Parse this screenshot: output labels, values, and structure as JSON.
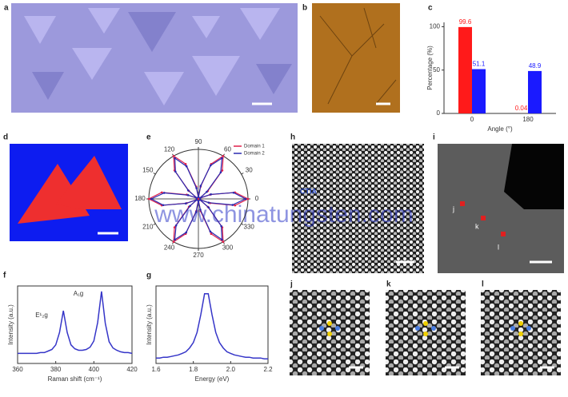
{
  "panel_labels": [
    "a",
    "b",
    "c",
    "d",
    "e",
    "h",
    "i",
    "f",
    "g",
    "j",
    "k",
    "l"
  ],
  "panel_i_markers": [
    "j",
    "k",
    "l"
  ],
  "watermark": "www.chinatungsten.com",
  "logo_text": "CTIA",
  "chart_data": [
    {
      "type": "bar",
      "ylabel": "Percentage (%)",
      "xlabel": "Angle (°)",
      "categories": [
        "0",
        "180"
      ],
      "series": [
        {
          "color": "#ff1a1a",
          "values": [
            99.6,
            0.04
          ]
        },
        {
          "color": "#1a1aff",
          "values": [
            51.1,
            48.9
          ]
        }
      ],
      "ylim": [
        0,
        105
      ],
      "yticks": [
        0,
        50,
        100
      ]
    },
    {
      "type": "polar",
      "x": [
        0,
        10,
        20,
        30,
        40,
        50,
        60,
        70,
        80,
        90,
        100,
        110,
        120,
        130,
        140,
        150,
        160,
        170,
        180,
        190,
        200,
        210,
        220,
        230,
        240,
        250,
        260,
        270,
        280,
        290,
        300,
        310,
        320,
        330,
        340,
        350
      ],
      "xticks": [
        0,
        30,
        60,
        90,
        120,
        150,
        180,
        210,
        240,
        270,
        300,
        330
      ],
      "rlim": [
        0,
        1
      ],
      "series": [
        {
          "name": "Domain 1",
          "color": "#e0204a",
          "values": [
            1,
            0.75,
            0.25,
            0.02,
            0.25,
            0.75,
            1,
            0.75,
            0.25,
            0.02,
            0.25,
            0.75,
            1,
            0.75,
            0.25,
            0.02,
            0.25,
            0.75,
            1,
            0.75,
            0.25,
            0.02,
            0.25,
            0.75,
            1,
            0.75,
            0.25,
            0.02,
            0.25,
            0.75,
            1,
            0.75,
            0.25,
            0.02,
            0.25,
            0.75
          ]
        },
        {
          "name": "Domain 2",
          "color": "#2a2ab0",
          "values": [
            0.95,
            0.72,
            0.27,
            0.04,
            0.22,
            0.7,
            0.95,
            0.72,
            0.27,
            0.04,
            0.22,
            0.7,
            0.95,
            0.72,
            0.27,
            0.04,
            0.22,
            0.7,
            0.95,
            0.72,
            0.27,
            0.04,
            0.22,
            0.7,
            0.95,
            0.72,
            0.27,
            0.04,
            0.22,
            0.7,
            0.95,
            0.72,
            0.27,
            0.04,
            0.22,
            0.7
          ]
        }
      ]
    },
    {
      "type": "line",
      "xlabel": "Raman shift (cm⁻¹)",
      "ylabel": "Intensity (a.u.)",
      "annotations": [
        "E¹₂g",
        "A₁g"
      ],
      "x": [
        360,
        362,
        364,
        366,
        368,
        370,
        372,
        374,
        376,
        378,
        380,
        382,
        384,
        386,
        388,
        390,
        392,
        394,
        396,
        398,
        400,
        402,
        404,
        406,
        408,
        410,
        412,
        414,
        416,
        418,
        420
      ],
      "series": [
        {
          "color": "#3535c8",
          "values": [
            0.13,
            0.13,
            0.13,
            0.13,
            0.13,
            0.13,
            0.14,
            0.14,
            0.16,
            0.18,
            0.24,
            0.4,
            0.68,
            0.4,
            0.24,
            0.19,
            0.17,
            0.17,
            0.18,
            0.21,
            0.29,
            0.53,
            0.93,
            0.52,
            0.28,
            0.2,
            0.17,
            0.15,
            0.14,
            0.14,
            0.13
          ]
        }
      ],
      "xlim": [
        360,
        420
      ],
      "xticks": [
        360,
        380,
        400,
        420
      ],
      "ylim": [
        0,
        1
      ]
    },
    {
      "type": "line",
      "xlabel": "Energy (eV)",
      "ylabel": "Intensity (a.u.)",
      "x": [
        1.6,
        1.62,
        1.64,
        1.66,
        1.68,
        1.7,
        1.72,
        1.74,
        1.76,
        1.78,
        1.8,
        1.82,
        1.84,
        1.86,
        1.88,
        1.9,
        1.92,
        1.94,
        1.96,
        1.98,
        2.0,
        2.02,
        2.04,
        2.06,
        2.08,
        2.1,
        2.12,
        2.14,
        2.16,
        2.18,
        2.2
      ],
      "series": [
        {
          "color": "#3535c8",
          "values": [
            0.07,
            0.07,
            0.08,
            0.08,
            0.09,
            0.1,
            0.11,
            0.13,
            0.15,
            0.2,
            0.27,
            0.4,
            0.63,
            0.9,
            0.9,
            0.63,
            0.4,
            0.27,
            0.2,
            0.15,
            0.13,
            0.11,
            0.1,
            0.09,
            0.08,
            0.08,
            0.07,
            0.07,
            0.07,
            0.06,
            0.06
          ]
        }
      ],
      "xlim": [
        1.6,
        2.2
      ],
      "xticks": [
        1.6,
        1.8,
        {
          "value": 2.0,
          "label": "2.0"
        },
        2.2
      ],
      "ylim": [
        0,
        1
      ]
    }
  ]
}
